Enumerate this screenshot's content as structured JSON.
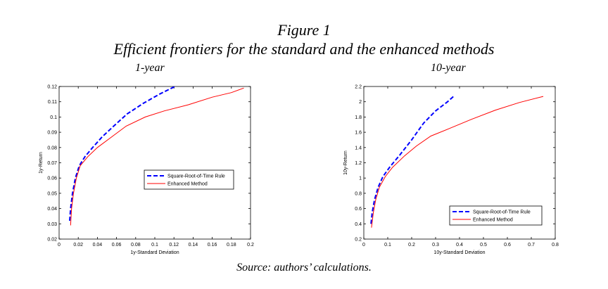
{
  "figure": {
    "number": "Figure 1",
    "title": "Efficient frontiers for the standard and the enhanced methods",
    "source": "Source: authors’ calculations."
  },
  "colors": {
    "square_root_rule": "#0000ff",
    "enhanced_method": "#ff0000",
    "axes": "#000000"
  },
  "chart_data": [
    {
      "type": "line",
      "panel_title": "1-year",
      "xlabel": "1y-Standard Deviation",
      "ylabel": "1y-Return",
      "xlim": [
        0,
        0.2
      ],
      "ylim": [
        0.02,
        0.12
      ],
      "x_ticks": [
        "0",
        "0.02",
        "0.04",
        "0.06",
        "0.08",
        "0.1",
        "0.12",
        "0.14",
        "0.16",
        "0.18",
        "0.2"
      ],
      "y_ticks": [
        "0.02",
        "0.03",
        "0.04",
        "0.05",
        "0.06",
        "0.07",
        "0.08",
        "0.09",
        "0.1",
        "0.11",
        "0.12"
      ],
      "grid": false,
      "legend_position": "center-right",
      "series": [
        {
          "name": "Square-Root-of-Time Rule",
          "style": "dashed",
          "x": [
            0.011,
            0.012,
            0.014,
            0.017,
            0.021,
            0.027,
            0.035,
            0.045,
            0.057,
            0.071,
            0.088,
            0.105,
            0.121
          ],
          "y": [
            0.032,
            0.04,
            0.05,
            0.06,
            0.068,
            0.074,
            0.08,
            0.087,
            0.094,
            0.102,
            0.109,
            0.115,
            0.12
          ]
        },
        {
          "name": "Enhanced Method",
          "style": "solid",
          "x": [
            0.012,
            0.013,
            0.015,
            0.018,
            0.022,
            0.03,
            0.04,
            0.055,
            0.07,
            0.09,
            0.11,
            0.135,
            0.16,
            0.18,
            0.193
          ],
          "y": [
            0.029,
            0.04,
            0.05,
            0.06,
            0.068,
            0.074,
            0.08,
            0.087,
            0.094,
            0.1,
            0.104,
            0.108,
            0.113,
            0.116,
            0.119
          ]
        }
      ]
    },
    {
      "type": "line",
      "panel_title": "10-year",
      "xlabel": "10y-Standard Deviation",
      "ylabel": "10y-Return",
      "xlim": [
        0,
        0.8
      ],
      "ylim": [
        0.2,
        2.2
      ],
      "x_ticks": [
        "0",
        "0.1",
        "0.2",
        "0.3",
        "0.4",
        "0.5",
        "0.6",
        "0.7",
        "0.8"
      ],
      "y_ticks": [
        "0.2",
        "0.4",
        "0.6",
        "0.8",
        "1",
        "1.2",
        "1.4",
        "1.6",
        "1.8",
        "2",
        "2.2"
      ],
      "grid": false,
      "legend_position": "bottom-right",
      "series": [
        {
          "name": "Square-Root-of-Time Rule",
          "style": "dashed",
          "x": [
            0.03,
            0.035,
            0.045,
            0.06,
            0.08,
            0.11,
            0.15,
            0.2,
            0.25,
            0.3,
            0.35,
            0.375
          ],
          "y": [
            0.4,
            0.55,
            0.72,
            0.88,
            1.02,
            1.15,
            1.3,
            1.5,
            1.72,
            1.88,
            2.0,
            2.07
          ]
        },
        {
          "name": "Enhanced Method",
          "style": "solid",
          "x": [
            0.032,
            0.04,
            0.05,
            0.065,
            0.09,
            0.12,
            0.17,
            0.22,
            0.28,
            0.35,
            0.45,
            0.55,
            0.65,
            0.75
          ],
          "y": [
            0.35,
            0.55,
            0.72,
            0.88,
            1.02,
            1.14,
            1.29,
            1.42,
            1.55,
            1.64,
            1.77,
            1.89,
            1.99,
            2.07
          ]
        }
      ]
    }
  ]
}
